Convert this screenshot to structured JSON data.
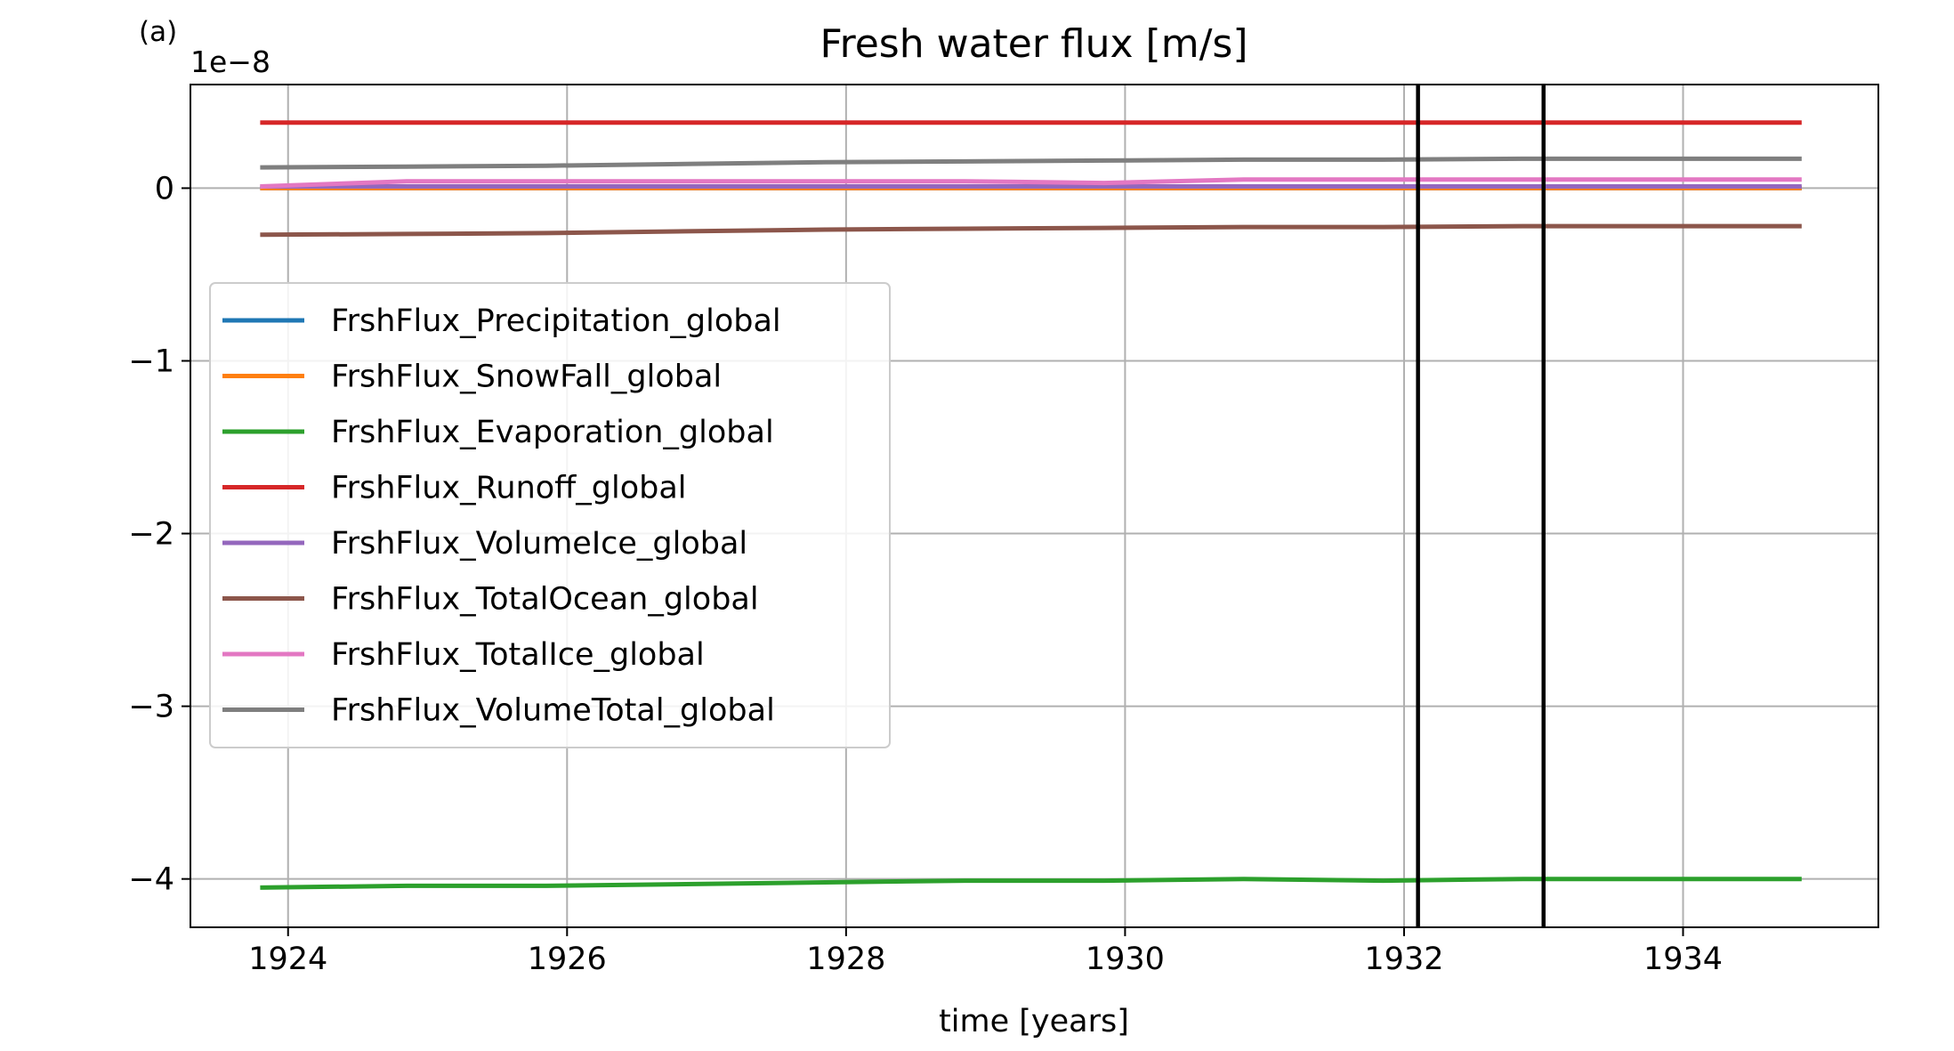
{
  "chart_data": {
    "type": "line",
    "panel_label": "(a)",
    "title": "Fresh water flux [m/s]",
    "xlabel": "time [years]",
    "ylabel": "",
    "y_offset_label": "1e−8",
    "xlim": [
      1923.3,
      1935.4
    ],
    "ylim": [
      -4.28,
      0.6
    ],
    "x_ticks": [
      1924,
      1926,
      1928,
      1930,
      1932,
      1934
    ],
    "x_tick_labels": [
      "1924",
      "1926",
      "1928",
      "1930",
      "1932",
      "1934"
    ],
    "y_ticks": [
      0,
      -1,
      -2,
      -3,
      -4
    ],
    "y_tick_labels": [
      "0",
      "−1",
      "−2",
      "−3",
      "−4"
    ],
    "grid": true,
    "legend_position": "center-left",
    "vertical_markers": [
      1932.1,
      1933.0
    ],
    "x": [
      1923.8,
      1924.85,
      1925.85,
      1926.85,
      1927.85,
      1928.85,
      1929.85,
      1930.85,
      1931.85,
      1932.85,
      1933.85,
      1934.85
    ],
    "series": [
      {
        "name": "FrshFlux_Precipitation_global",
        "color": "#1f77b4",
        "values": [
          0.0,
          0.0,
          0.0,
          0.0,
          0.0,
          0.0,
          0.0,
          0.0,
          0.0,
          0.0,
          0.0,
          0.0
        ]
      },
      {
        "name": "FrshFlux_SnowFall_global",
        "color": "#ff7f0e",
        "values": [
          0.0,
          0.0,
          0.0,
          0.0,
          0.0,
          0.0,
          0.0,
          0.0,
          0.0,
          0.0,
          0.0,
          0.0
        ]
      },
      {
        "name": "FrshFlux_Evaporation_global",
        "color": "#2ca02c",
        "values": [
          -4.05,
          -4.04,
          -4.04,
          -4.03,
          -4.02,
          -4.01,
          -4.01,
          -4.0,
          -4.01,
          -4.0,
          -4.0,
          -4.0
        ]
      },
      {
        "name": "FrshFlux_Runoff_global",
        "color": "#d62728",
        "values": [
          0.38,
          0.38,
          0.38,
          0.38,
          0.38,
          0.38,
          0.38,
          0.38,
          0.38,
          0.38,
          0.38,
          0.38
        ]
      },
      {
        "name": "FrshFlux_VolumeIce_global",
        "color": "#9467bd",
        "values": [
          0.01,
          0.01,
          0.01,
          0.01,
          0.01,
          0.01,
          0.01,
          0.01,
          0.01,
          0.01,
          0.01,
          0.01
        ]
      },
      {
        "name": "FrshFlux_TotalOcean_global",
        "color": "#8c564b",
        "values": [
          -0.27,
          -0.265,
          -0.26,
          -0.25,
          -0.24,
          -0.235,
          -0.23,
          -0.225,
          -0.225,
          -0.22,
          -0.22,
          -0.22
        ]
      },
      {
        "name": "FrshFlux_TotalIce_global",
        "color": "#e377c2",
        "values": [
          0.01,
          0.04,
          0.04,
          0.04,
          0.04,
          0.04,
          0.03,
          0.05,
          0.05,
          0.05,
          0.05,
          0.05
        ]
      },
      {
        "name": "FrshFlux_VolumeTotal_global",
        "color": "#7f7f7f",
        "values": [
          0.12,
          0.125,
          0.13,
          0.14,
          0.15,
          0.155,
          0.16,
          0.165,
          0.165,
          0.17,
          0.17,
          0.17
        ]
      }
    ]
  }
}
